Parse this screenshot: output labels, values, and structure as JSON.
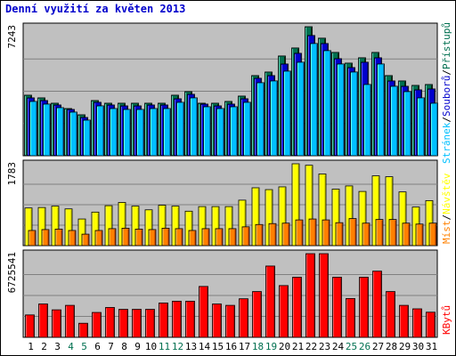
{
  "title": "Denní využití za květen 2013",
  "colors": {
    "background": "#ffffff",
    "panel": "#c0c0c0",
    "grid": "#808080",
    "title": "#0000cc",
    "hits": "#007050",
    "files": "#0000cc",
    "pages": "#00c0ff",
    "visits": "#ffff00",
    "sites": "#ff8000",
    "kbytes": "#ff0000",
    "weekend_label": "#007050",
    "weekday_label": "#000000"
  },
  "legend": {
    "hits_label": "Přístupů",
    "files_label": "Souborů",
    "pages_label": "Stránek",
    "visits_label": "Návštěv",
    "sites_label": "Míst",
    "kbytes_label": "KBytů",
    "separator": "/"
  },
  "chart_data": [
    {
      "type": "bar",
      "panel": "hits-files-pages",
      "y_max_label": "7243",
      "ylim": [
        0,
        7243
      ],
      "categories": [
        "1",
        "2",
        "3",
        "4",
        "5",
        "6",
        "7",
        "8",
        "9",
        "10",
        "11",
        "12",
        "13",
        "14",
        "15",
        "16",
        "17",
        "18",
        "19",
        "20",
        "21",
        "22",
        "23",
        "24",
        "25",
        "26",
        "27",
        "28",
        "29",
        "30",
        "31"
      ],
      "weekend": [
        "4",
        "5",
        "11",
        "12",
        "18",
        "19",
        "25",
        "26"
      ],
      "series": [
        {
          "name": "Přístupů",
          "values": [
            3400,
            3250,
            2950,
            2650,
            2300,
            3100,
            2950,
            2950,
            2950,
            2950,
            2950,
            3400,
            3600,
            2950,
            2950,
            3050,
            3350,
            4500,
            4700,
            5600,
            6050,
            7243,
            6600,
            5800,
            5200,
            5500,
            5800,
            4500,
            4200,
            3950,
            4000
          ]
        },
        {
          "name": "Souborů",
          "values": [
            3250,
            3100,
            2850,
            2600,
            2150,
            3000,
            2850,
            2800,
            2800,
            2850,
            2850,
            3200,
            3450,
            2900,
            2800,
            2900,
            3200,
            4350,
            4500,
            5150,
            5750,
            6750,
            6300,
            5450,
            4950,
            5250,
            5500,
            4200,
            3900,
            3700,
            3750
          ]
        },
        {
          "name": "Stránek",
          "values": [
            3050,
            2900,
            2700,
            2450,
            2000,
            2800,
            2650,
            2600,
            2600,
            2650,
            2650,
            3000,
            3250,
            2750,
            2650,
            2750,
            3000,
            4100,
            4200,
            4750,
            5250,
            6300,
            5900,
            5150,
            4700,
            4000,
            5150,
            3900,
            3600,
            3250,
            2950
          ]
        }
      ]
    },
    {
      "type": "bar",
      "panel": "visits-sites",
      "y_max_label": "1783",
      "ylim": [
        0,
        1783
      ],
      "categories": [
        "1",
        "2",
        "3",
        "4",
        "5",
        "6",
        "7",
        "8",
        "9",
        "10",
        "11",
        "12",
        "13",
        "14",
        "15",
        "16",
        "17",
        "18",
        "19",
        "20",
        "21",
        "22",
        "23",
        "24",
        "25",
        "26",
        "27",
        "28",
        "29",
        "30",
        "31"
      ],
      "series": [
        {
          "name": "Návštěv",
          "values": [
            820,
            830,
            860,
            800,
            580,
            730,
            870,
            940,
            860,
            780,
            880,
            860,
            750,
            850,
            850,
            850,
            990,
            1260,
            1220,
            1280,
            1783,
            1750,
            1560,
            1230,
            1300,
            1180,
            1520,
            1500,
            1170,
            840,
            980
          ]
        },
        {
          "name": "Míst",
          "values": [
            330,
            350,
            360,
            330,
            250,
            330,
            370,
            380,
            360,
            350,
            380,
            370,
            330,
            370,
            370,
            370,
            410,
            460,
            480,
            490,
            560,
            580,
            560,
            500,
            590,
            490,
            570,
            570,
            490,
            470,
            490
          ]
        }
      ]
    },
    {
      "type": "bar",
      "panel": "kbytes",
      "y_max_label": "6725541",
      "ylim": [
        0,
        6725541
      ],
      "categories": [
        "1",
        "2",
        "3",
        "4",
        "5",
        "6",
        "7",
        "8",
        "9",
        "10",
        "11",
        "12",
        "13",
        "14",
        "15",
        "16",
        "17",
        "18",
        "19",
        "20",
        "21",
        "22",
        "23",
        "24",
        "25",
        "26",
        "27",
        "28",
        "29",
        "30",
        "31"
      ],
      "series": [
        {
          "name": "KBytů",
          "values": [
            1800000,
            2680000,
            2210000,
            2570000,
            1130000,
            2000000,
            2400000,
            2250000,
            2250000,
            2250000,
            2760000,
            2900000,
            2900000,
            4090000,
            2680000,
            2570000,
            3100000,
            3680000,
            5730000,
            4160000,
            4830000,
            6725541,
            6725541,
            4830000,
            3120000,
            4830000,
            5320000,
            3680000,
            2570000,
            2290000,
            2020000
          ]
        }
      ]
    }
  ]
}
